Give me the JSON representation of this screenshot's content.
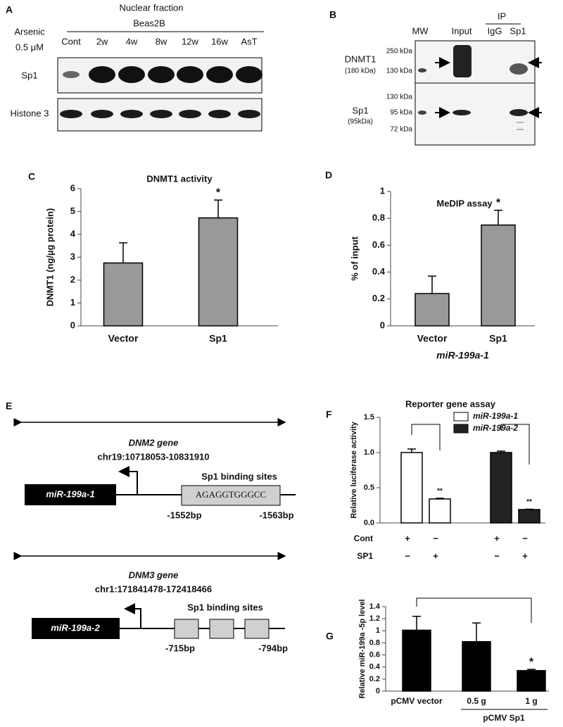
{
  "panel_a": {
    "letter": "A",
    "title": "Nuclear fraction",
    "cell_line": "Beas2B",
    "treatment": "Arsenic",
    "dose": "0.5 μM",
    "lanes": [
      "Cont",
      "2w",
      "4w",
      "8w",
      "12w",
      "16w",
      "AsT"
    ],
    "rows": [
      "Sp1",
      "Histone 3"
    ]
  },
  "panel_b": {
    "letter": "B",
    "lanes": [
      "MW",
      "Input",
      "IgG",
      "Sp1"
    ],
    "ip": "IP",
    "blots": [
      {
        "protein": "DNMT1",
        "size": "(180 kDa)",
        "markers": [
          "250 kDa",
          "130 kDa"
        ]
      },
      {
        "protein": "Sp1",
        "size": "(95kDa)",
        "markers": [
          "130 kDa",
          "95 kDa",
          "72 kDa"
        ]
      }
    ]
  },
  "chart_data": [
    {
      "type": "bar",
      "letter": "C",
      "title": "DNMT1 activity",
      "ylabel": "DNMT1 (ng/µg protein)",
      "categories": [
        "Vector",
        "Sp1"
      ],
      "values": [
        2.75,
        4.72
      ],
      "errors": [
        0.88,
        0.78
      ],
      "significance": [
        null,
        "*"
      ],
      "color": "#999999",
      "ylim": [
        0,
        6
      ],
      "yticks": [
        0,
        1,
        2,
        3,
        4,
        5,
        6
      ]
    },
    {
      "type": "bar",
      "letter": "D",
      "title": "MeDIP assay",
      "ylabel": "% of input",
      "xlabel": "miR-199a-1",
      "categories": [
        "Vector",
        "Sp1"
      ],
      "values": [
        0.24,
        0.75
      ],
      "errors": [
        0.13,
        0.11
      ],
      "significance": [
        null,
        "*"
      ],
      "color": "#999999",
      "ylim": [
        0,
        1
      ],
      "yticks": [
        0,
        0.2,
        0.4,
        0.6,
        0.8,
        1
      ]
    },
    {
      "type": "bar",
      "letter": "F",
      "title": "Reporter gene assay",
      "ylabel": "Relative luciferase activity",
      "categories": [
        null,
        null,
        null,
        null
      ],
      "conditions": [
        {
          "name": "Cont",
          "marks": [
            "+",
            "−",
            "+",
            "−"
          ]
        },
        {
          "name": "SP1",
          "marks": [
            "−",
            "+",
            "−",
            "+"
          ]
        }
      ],
      "series": [
        {
          "name": "miR-199a-1",
          "color": "#ffffff",
          "values": [
            1.0,
            0.34,
            null,
            null
          ],
          "errors": [
            0.05,
            0.01,
            null,
            null
          ],
          "significance": [
            null,
            "**",
            null,
            null
          ]
        },
        {
          "name": "miR-199a-2",
          "color": "#222222",
          "values": [
            null,
            null,
            1.0,
            0.19
          ],
          "errors": [
            null,
            null,
            0.02,
            0.005
          ],
          "significance": [
            null,
            null,
            null,
            "**"
          ]
        }
      ],
      "ylim": [
        0,
        1.5
      ],
      "yticks": [
        {
          "value": 0,
          "label": "0.0"
        },
        {
          "value": 0.5,
          "label": "0.5"
        },
        {
          "value": 1,
          "label": "1.0"
        },
        {
          "value": 1.5,
          "label": "1.5"
        }
      ]
    },
    {
      "type": "bar",
      "letter": "G",
      "ylabel": "Relative miR-199a -5p level",
      "categories": [
        "pCMV vector",
        "0.5 g",
        "1 g"
      ],
      "group_label": "pCMV Sp1",
      "values": [
        1.01,
        0.82,
        0.34
      ],
      "errors": [
        0.23,
        0.31,
        0.02
      ],
      "significance": [
        null,
        null,
        "*"
      ],
      "color": "#000000",
      "ylim": [
        0,
        1.4
      ],
      "yticks": [
        0,
        0.2,
        0.4,
        0.6,
        0.8,
        1,
        1.2,
        1.4
      ]
    }
  ],
  "panel_e": {
    "letter": "E",
    "genes": [
      {
        "gene": "DNM2 gene",
        "locus": "chr19:10718053-10831910",
        "mirna": "miR-199a-1",
        "sites_label": "Sp1 binding sites",
        "sequence": "AGAGGTGGGCC",
        "start": "-1552bp",
        "end": "-1563bp"
      },
      {
        "gene": "DNM3 gene",
        "locus": "chr1:171841478-172418466",
        "mirna": "miR-199a-2",
        "sites_label": "Sp1 binding sites",
        "start": "-715bp",
        "end": "-794bp"
      }
    ]
  }
}
